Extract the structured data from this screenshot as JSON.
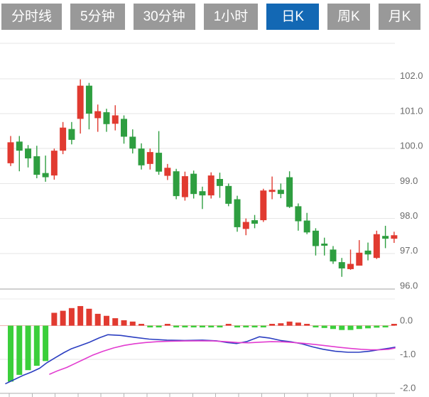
{
  "tabs": {
    "items": [
      {
        "label": "分时线",
        "active": false
      },
      {
        "label": "5分钟",
        "active": false
      },
      {
        "label": "30分钟",
        "active": false
      },
      {
        "label": "1小时",
        "active": false
      },
      {
        "label": "日K",
        "active": true
      },
      {
        "label": "周K",
        "active": false
      },
      {
        "label": "月K",
        "active": false
      }
    ],
    "active_color": "#1368b4",
    "inactive_color": "#999999",
    "text_color": "#ffffff"
  },
  "chart_data": {
    "type": "candlestick",
    "title": "",
    "legend_position": "none",
    "grid": true,
    "grid_color": "#e6e6e6",
    "border_color": "#d0d0d0",
    "axis_label_color": "#6b6b6b",
    "up_color": "#e13a30",
    "down_color": "#2e9e40",
    "main_panel": {
      "ylabels": [
        {
          "text": "102.0",
          "value": 102.0
        },
        {
          "text": "101.0",
          "value": 101.0
        },
        {
          "text": "100.0",
          "value": 100.0
        },
        {
          "text": "99.0",
          "value": 99.0
        },
        {
          "text": "98.0",
          "value": 98.0
        },
        {
          "text": "97.0",
          "value": 97.0
        },
        {
          "text": "96.0",
          "value": 96.0
        }
      ],
      "ymin": 96.0,
      "ymax": 103.0,
      "candles_ohlc": [
        [
          99.58,
          100.36,
          99.5,
          100.18
        ],
        [
          100.2,
          100.36,
          99.35,
          99.94
        ],
        [
          100.0,
          100.1,
          99.46,
          99.72
        ],
        [
          99.78,
          100.08,
          99.15,
          99.25
        ],
        [
          99.3,
          99.8,
          99.05,
          99.18
        ],
        [
          99.23,
          100.0,
          99.11,
          99.94
        ],
        [
          99.94,
          100.76,
          99.84,
          100.6
        ],
        [
          100.56,
          100.76,
          100.12,
          100.25
        ],
        [
          100.85,
          101.98,
          100.43,
          101.8
        ],
        [
          101.8,
          101.88,
          100.55,
          101.0
        ],
        [
          100.87,
          101.26,
          100.48,
          101.07
        ],
        [
          101.04,
          101.14,
          100.48,
          100.7
        ],
        [
          100.71,
          101.24,
          100.52,
          100.95
        ],
        [
          100.85,
          100.95,
          100.14,
          100.34
        ],
        [
          100.34,
          100.55,
          99.86,
          100.0
        ],
        [
          100.0,
          100.15,
          99.4,
          99.52
        ],
        [
          99.56,
          100.0,
          99.4,
          99.9
        ],
        [
          99.88,
          100.5,
          99.25,
          99.34
        ],
        [
          99.22,
          99.56,
          99.1,
          99.45
        ],
        [
          99.35,
          99.42,
          98.55,
          98.64
        ],
        [
          98.61,
          99.34,
          98.51,
          99.21
        ],
        [
          99.28,
          99.37,
          98.57,
          98.7
        ],
        [
          98.78,
          98.91,
          98.27,
          98.66
        ],
        [
          98.66,
          99.32,
          98.57,
          99.23
        ],
        [
          99.13,
          99.31,
          98.59,
          98.93
        ],
        [
          98.93,
          99.0,
          98.35,
          98.42
        ],
        [
          98.55,
          98.65,
          97.62,
          97.75
        ],
        [
          97.7,
          98.0,
          97.52,
          97.9
        ],
        [
          97.95,
          98.1,
          97.72,
          97.85
        ],
        [
          97.95,
          98.85,
          97.9,
          98.8
        ],
        [
          98.76,
          99.2,
          98.55,
          98.82
        ],
        [
          98.82,
          99.0,
          98.58,
          98.7
        ],
        [
          99.18,
          99.35,
          98.3,
          98.33
        ],
        [
          98.35,
          98.43,
          97.65,
          97.92
        ],
        [
          97.94,
          98.16,
          97.55,
          97.6
        ],
        [
          97.65,
          97.72,
          96.94,
          97.21
        ],
        [
          97.28,
          97.45,
          96.94,
          97.22
        ],
        [
          97.11,
          97.21,
          96.7,
          96.77
        ],
        [
          96.75,
          96.87,
          96.33,
          96.57
        ],
        [
          96.55,
          97.11,
          96.53,
          96.7
        ],
        [
          96.65,
          97.38,
          96.65,
          97.02
        ],
        [
          97.08,
          97.31,
          96.8,
          96.97
        ],
        [
          96.87,
          97.65,
          96.84,
          97.55
        ],
        [
          97.5,
          97.79,
          97.15,
          97.42
        ],
        [
          97.42,
          97.62,
          97.3,
          97.52
        ]
      ]
    },
    "macd_panel": {
      "ylabels": [
        {
          "text": "0.0",
          "value": 0.0
        },
        {
          "text": "-1.0",
          "value": -1.0
        },
        {
          "text": "-2.0",
          "value": -2.0
        }
      ],
      "ymin": -2.0,
      "ymax": 0.8,
      "zero_line_color": "#f0b3b3",
      "pos_color": "#e13a30",
      "neg_color": "#3bcf3b",
      "dif_color": "#2b3ec1",
      "dea_color": "#e23cd0",
      "histogram": [
        -1.66,
        -1.46,
        -1.32,
        -1.19,
        -1.05,
        0.38,
        0.44,
        0.52,
        0.58,
        0.5,
        0.35,
        0.29,
        0.22,
        0.16,
        0.12,
        0.03,
        -0.03,
        -0.03,
        0.03,
        -0.02,
        -0.04,
        -0.04,
        -0.05,
        -0.04,
        -0.04,
        0.03,
        -0.03,
        -0.04,
        -0.04,
        -0.03,
        0.04,
        0.07,
        0.12,
        0.09,
        0.05,
        -0.05,
        -0.07,
        -0.1,
        -0.13,
        -0.13,
        -0.1,
        -0.08,
        -0.06,
        -0.04,
        0.05
      ],
      "dif_line": [
        [
          8,
          -1.72
        ],
        [
          20,
          -1.6
        ],
        [
          32,
          -1.48
        ],
        [
          44,
          -1.38
        ],
        [
          56,
          -1.26
        ],
        [
          66,
          -1.1
        ],
        [
          78,
          -0.95
        ],
        [
          90,
          -0.8
        ],
        [
          100,
          -0.69
        ],
        [
          112,
          -0.6
        ],
        [
          125,
          -0.5
        ],
        [
          140,
          -0.36
        ],
        [
          152,
          -0.27
        ],
        [
          170,
          -0.29
        ],
        [
          190,
          -0.35
        ],
        [
          210,
          -0.4
        ],
        [
          235,
          -0.43
        ],
        [
          260,
          -0.44
        ],
        [
          285,
          -0.43
        ],
        [
          305,
          -0.45
        ],
        [
          320,
          -0.5
        ],
        [
          333,
          -0.53
        ],
        [
          348,
          -0.47
        ],
        [
          365,
          -0.33
        ],
        [
          380,
          -0.37
        ],
        [
          395,
          -0.44
        ],
        [
          410,
          -0.48
        ],
        [
          425,
          -0.54
        ],
        [
          440,
          -0.63
        ],
        [
          455,
          -0.7
        ],
        [
          472,
          -0.76
        ],
        [
          490,
          -0.79
        ],
        [
          505,
          -0.79
        ],
        [
          520,
          -0.76
        ],
        [
          535,
          -0.71
        ],
        [
          548,
          -0.67
        ],
        [
          556,
          -0.64
        ]
      ],
      "dea_line": [
        [
          70,
          -1.44
        ],
        [
          82,
          -1.33
        ],
        [
          94,
          -1.24
        ],
        [
          106,
          -1.12
        ],
        [
          118,
          -1.0
        ],
        [
          130,
          -0.88
        ],
        [
          145,
          -0.76
        ],
        [
          160,
          -0.66
        ],
        [
          175,
          -0.585
        ],
        [
          190,
          -0.535
        ],
        [
          205,
          -0.5
        ],
        [
          222,
          -0.475
        ],
        [
          240,
          -0.46
        ],
        [
          260,
          -0.455
        ],
        [
          280,
          -0.45
        ],
        [
          300,
          -0.455
        ],
        [
          318,
          -0.475
        ],
        [
          334,
          -0.5
        ],
        [
          350,
          -0.51
        ],
        [
          366,
          -0.49
        ],
        [
          382,
          -0.475
        ],
        [
          398,
          -0.48
        ],
        [
          414,
          -0.5
        ],
        [
          430,
          -0.53
        ],
        [
          446,
          -0.565
        ],
        [
          462,
          -0.605
        ],
        [
          478,
          -0.645
        ],
        [
          493,
          -0.675
        ],
        [
          508,
          -0.7
        ],
        [
          522,
          -0.715
        ],
        [
          536,
          -0.715
        ],
        [
          547,
          -0.7
        ],
        [
          556,
          -0.665
        ]
      ],
      "x_ticks": {
        "start": 13,
        "step": 32.3,
        "count": 17
      }
    }
  }
}
